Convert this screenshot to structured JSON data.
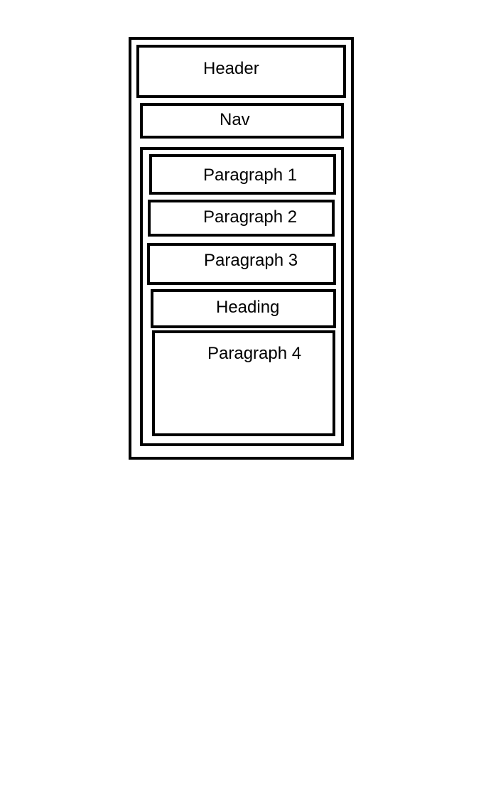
{
  "diagram": {
    "header_label": "Header",
    "nav_label": "Nav",
    "content": {
      "paragraph_1_label": "Paragraph 1",
      "paragraph_2_label": "Paragraph 2",
      "paragraph_3_label": "Paragraph 3",
      "heading_label": "Heading",
      "paragraph_4_label": "Paragraph 4"
    }
  }
}
